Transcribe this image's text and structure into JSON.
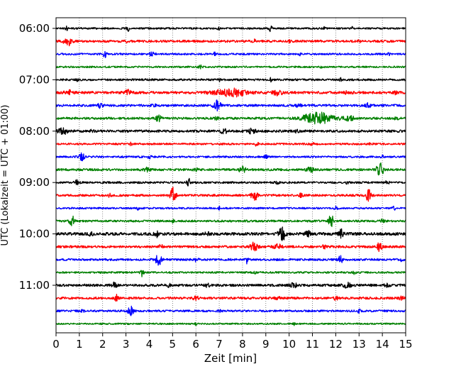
{
  "chart_data": {
    "type": "helicorder",
    "xlabel": "Zeit  [min]",
    "ylabel": "UTC (Lokalzeit = UTC + 01:00)",
    "xlim": [
      0,
      15
    ],
    "x_ticks": [
      0,
      1,
      2,
      3,
      4,
      5,
      6,
      7,
      8,
      9,
      10,
      11,
      12,
      13,
      14,
      15
    ],
    "x_tick_labels": [
      "0",
      "1",
      "2",
      "3",
      "4",
      "5",
      "6",
      "7",
      "8",
      "9",
      "10",
      "11",
      "12",
      "13",
      "14",
      "15"
    ],
    "grid": "vertical dotted lines at each minute",
    "y_tick_labels": [
      {
        "label": "06:00",
        "trace_index": 0
      },
      {
        "label": "07:00",
        "trace_index": 4
      },
      {
        "label": "08:00",
        "trace_index": 8
      },
      {
        "label": "09:00",
        "trace_index": 12
      },
      {
        "label": "10:00",
        "trace_index": 16
      },
      {
        "label": "11:00",
        "trace_index": 20
      }
    ],
    "trace_minutes": 15,
    "trace_count": 24,
    "color_cycle": [
      "#000000",
      "#ff0000",
      "#0000ff",
      "#008000"
    ],
    "traces": [
      {
        "start": "06:00",
        "color": "#000000",
        "noise": 1.2,
        "events": [
          [
            0.45,
            4,
            0.05
          ],
          [
            3.1,
            4,
            0.06
          ],
          [
            9.2,
            5,
            0.06
          ],
          [
            12.7,
            2,
            0.06
          ],
          [
            7.0,
            2,
            0.05
          ],
          [
            11.5,
            1.5,
            0.05
          ]
        ]
      },
      {
        "start": "06:15",
        "color": "#ff0000",
        "noise": 1.6,
        "events": [
          [
            0.5,
            8,
            0.15
          ],
          [
            3.0,
            2,
            0.05
          ],
          [
            8.5,
            2,
            0.05
          ],
          [
            13.0,
            2,
            0.05
          ],
          [
            10.0,
            1.5,
            0.05
          ]
        ]
      },
      {
        "start": "06:30",
        "color": "#0000ff",
        "noise": 1.3,
        "events": [
          [
            2.1,
            4,
            0.08
          ],
          [
            4.1,
            3,
            0.1
          ],
          [
            6.8,
            2,
            0.08
          ],
          [
            10.5,
            2,
            0.06
          ],
          [
            14.3,
            2,
            0.06
          ]
        ]
      },
      {
        "start": "06:45",
        "color": "#008000",
        "noise": 1.2,
        "events": [
          [
            6.2,
            2,
            0.08
          ],
          [
            11.4,
            1.5,
            0.05
          ]
        ]
      },
      {
        "start": "07:00",
        "color": "#000000",
        "noise": 1.4,
        "events": [
          [
            0.9,
            2,
            0.05
          ],
          [
            7.0,
            2,
            0.06
          ],
          [
            9.2,
            2,
            0.05
          ],
          [
            12.2,
            2,
            0.05
          ]
        ]
      },
      {
        "start": "07:15",
        "color": "#ff0000",
        "noise": 1.8,
        "events": [
          [
            0.6,
            3,
            0.2
          ],
          [
            3.1,
            3,
            0.2
          ],
          [
            7.5,
            5,
            0.7
          ],
          [
            9.5,
            3,
            0.2
          ],
          [
            12.5,
            2,
            0.15
          ],
          [
            14.5,
            2,
            0.1
          ]
        ]
      },
      {
        "start": "07:30",
        "color": "#0000ff",
        "noise": 1.6,
        "events": [
          [
            1.9,
            3,
            0.1
          ],
          [
            6.9,
            7,
            0.15
          ],
          [
            13.4,
            3,
            0.1
          ],
          [
            10.4,
            2,
            0.1
          ],
          [
            4.2,
            2,
            0.1
          ]
        ]
      },
      {
        "start": "07:45",
        "color": "#008000",
        "noise": 1.6,
        "events": [
          [
            4.4,
            4,
            0.12
          ],
          [
            11.2,
            8,
            0.6
          ],
          [
            12.5,
            3,
            0.3
          ],
          [
            6.9,
            2,
            0.1
          ],
          [
            14.6,
            2,
            0.1
          ]
        ]
      },
      {
        "start": "08:00",
        "color": "#000000",
        "noise": 1.7,
        "events": [
          [
            0.3,
            4,
            0.2
          ],
          [
            7.2,
            3,
            0.15
          ],
          [
            8.4,
            3,
            0.15
          ],
          [
            10.3,
            2,
            0.1
          ],
          [
            1.5,
            2,
            0.1
          ]
        ]
      },
      {
        "start": "08:15",
        "color": "#ff0000",
        "noise": 1.3,
        "events": [
          [
            3.2,
            2,
            0.08
          ],
          [
            8.6,
            2,
            0.1
          ],
          [
            11.0,
            2,
            0.1
          ],
          [
            13.5,
            2,
            0.1
          ]
        ]
      },
      {
        "start": "08:30",
        "color": "#0000ff",
        "noise": 1.3,
        "events": [
          [
            1.1,
            5,
            0.15
          ],
          [
            4.0,
            2,
            0.08
          ],
          [
            9.0,
            2,
            0.08
          ],
          [
            14.0,
            2,
            0.08
          ]
        ]
      },
      {
        "start": "08:45",
        "color": "#008000",
        "noise": 1.6,
        "events": [
          [
            3.9,
            3,
            0.15
          ],
          [
            8.0,
            4,
            0.15
          ],
          [
            10.9,
            3,
            0.15
          ],
          [
            13.9,
            10,
            0.15
          ],
          [
            6.0,
            2,
            0.1
          ]
        ]
      },
      {
        "start": "09:00",
        "color": "#000000",
        "noise": 1.4,
        "events": [
          [
            0.9,
            3,
            0.1
          ],
          [
            5.7,
            5,
            0.08
          ],
          [
            9.5,
            2,
            0.08
          ],
          [
            12.5,
            2,
            0.08
          ],
          [
            14.2,
            2,
            0.08
          ]
        ]
      },
      {
        "start": "09:15",
        "color": "#ff0000",
        "noise": 1.5,
        "events": [
          [
            2.3,
            3,
            0.05
          ],
          [
            5.0,
            11,
            0.12
          ],
          [
            8.5,
            8,
            0.12
          ],
          [
            13.4,
            8,
            0.12
          ],
          [
            10.5,
            2,
            0.1
          ]
        ]
      },
      {
        "start": "09:30",
        "color": "#0000ff",
        "noise": 1.2,
        "events": [
          [
            3.5,
            2,
            0.05
          ],
          [
            7.0,
            2,
            0.05
          ],
          [
            12.0,
            2,
            0.08
          ],
          [
            14.5,
            2,
            0.08
          ]
        ]
      },
      {
        "start": "09:45",
        "color": "#008000",
        "noise": 1.4,
        "events": [
          [
            0.7,
            7,
            0.12
          ],
          [
            5.0,
            2,
            0.06
          ],
          [
            11.8,
            9,
            0.1
          ],
          [
            8.2,
            2,
            0.08
          ],
          [
            14.0,
            2,
            0.08
          ]
        ]
      },
      {
        "start": "10:00",
        "color": "#000000",
        "noise": 2.0,
        "events": [
          [
            4.3,
            4,
            0.1
          ],
          [
            9.7,
            9,
            0.15
          ],
          [
            10.8,
            4,
            0.1
          ],
          [
            12.2,
            8,
            0.12
          ],
          [
            1.5,
            2,
            0.1
          ],
          [
            6.5,
            2,
            0.1
          ]
        ]
      },
      {
        "start": "10:15",
        "color": "#ff0000",
        "noise": 1.6,
        "events": [
          [
            8.5,
            6,
            0.15
          ],
          [
            9.5,
            4,
            0.15
          ],
          [
            13.9,
            8,
            0.12
          ],
          [
            4.5,
            2,
            0.1
          ],
          [
            11.5,
            2,
            0.1
          ]
        ]
      },
      {
        "start": "10:30",
        "color": "#0000ff",
        "noise": 1.5,
        "events": [
          [
            4.4,
            9,
            0.12
          ],
          [
            8.2,
            8,
            0.03
          ],
          [
            12.2,
            6,
            0.1
          ],
          [
            14.8,
            2,
            0.08
          ],
          [
            6.0,
            2,
            0.08
          ]
        ]
      },
      {
        "start": "10:45",
        "color": "#008000",
        "noise": 1.3,
        "events": [
          [
            3.7,
            6,
            0.08
          ],
          [
            8.5,
            2,
            0.08
          ],
          [
            12.8,
            2,
            0.08
          ]
        ]
      },
      {
        "start": "11:00",
        "color": "#000000",
        "noise": 1.7,
        "events": [
          [
            2.5,
            3,
            0.1
          ],
          [
            6.5,
            2,
            0.1
          ],
          [
            10.2,
            3,
            0.15
          ],
          [
            12.5,
            3,
            0.2
          ],
          [
            14.2,
            2,
            0.1
          ],
          [
            4.8,
            2,
            0.1
          ]
        ]
      },
      {
        "start": "11:15",
        "color": "#ff0000",
        "noise": 1.6,
        "events": [
          [
            2.6,
            4,
            0.1
          ],
          [
            6.0,
            3,
            0.1
          ],
          [
            9.5,
            2,
            0.1
          ],
          [
            14.8,
            3,
            0.1
          ],
          [
            12.0,
            2,
            0.1
          ]
        ]
      },
      {
        "start": "11:30",
        "color": "#0000ff",
        "noise": 1.4,
        "events": [
          [
            1.1,
            2,
            0.1
          ],
          [
            3.2,
            7,
            0.12
          ],
          [
            7.0,
            2,
            0.08
          ],
          [
            13.0,
            2,
            0.08
          ]
        ]
      },
      {
        "start": "11:45",
        "color": "#008000",
        "noise": 1.1,
        "events": [
          [
            10.2,
            2,
            0.05
          ],
          [
            6.0,
            1.5,
            0.05
          ]
        ]
      }
    ]
  }
}
